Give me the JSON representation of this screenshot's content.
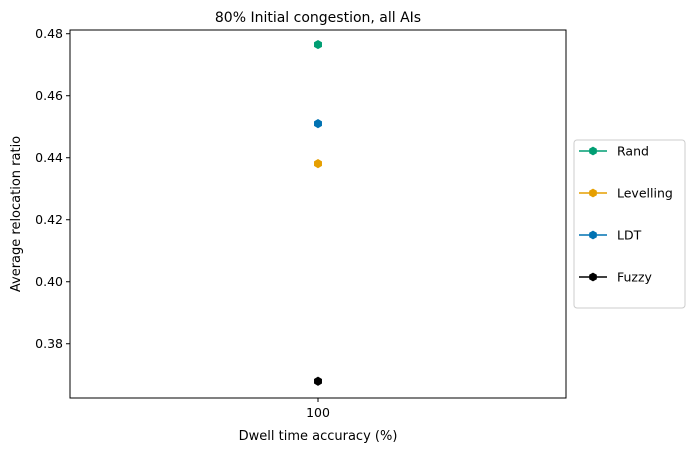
{
  "chart_data": {
    "type": "scatter",
    "title": "80% Initial congestion, all AIs",
    "xlabel": "Dwell time accuracy (%)",
    "ylabel": "Average relocation ratio",
    "x_categories": [
      "100"
    ],
    "ylim": [
      0.3625,
      0.4812
    ],
    "yticks": [
      0.38,
      0.4,
      0.42,
      0.44,
      0.46,
      0.48
    ],
    "ytick_labels": [
      "0.38",
      "0.40",
      "0.42",
      "0.44",
      "0.46",
      "0.48"
    ],
    "grid": false,
    "legend_position": "right",
    "series": [
      {
        "name": "Rand",
        "color": "#009e73",
        "x": [
          "100"
        ],
        "y": [
          0.4765
        ]
      },
      {
        "name": "Levelling",
        "color": "#e69f00",
        "x": [
          "100"
        ],
        "y": [
          0.4381
        ]
      },
      {
        "name": "LDT",
        "color": "#0072b2",
        "x": [
          "100"
        ],
        "y": [
          0.451
        ]
      },
      {
        "name": "Fuzzy",
        "color": "#000000",
        "x": [
          "100"
        ],
        "y": [
          0.3679
        ]
      }
    ]
  }
}
